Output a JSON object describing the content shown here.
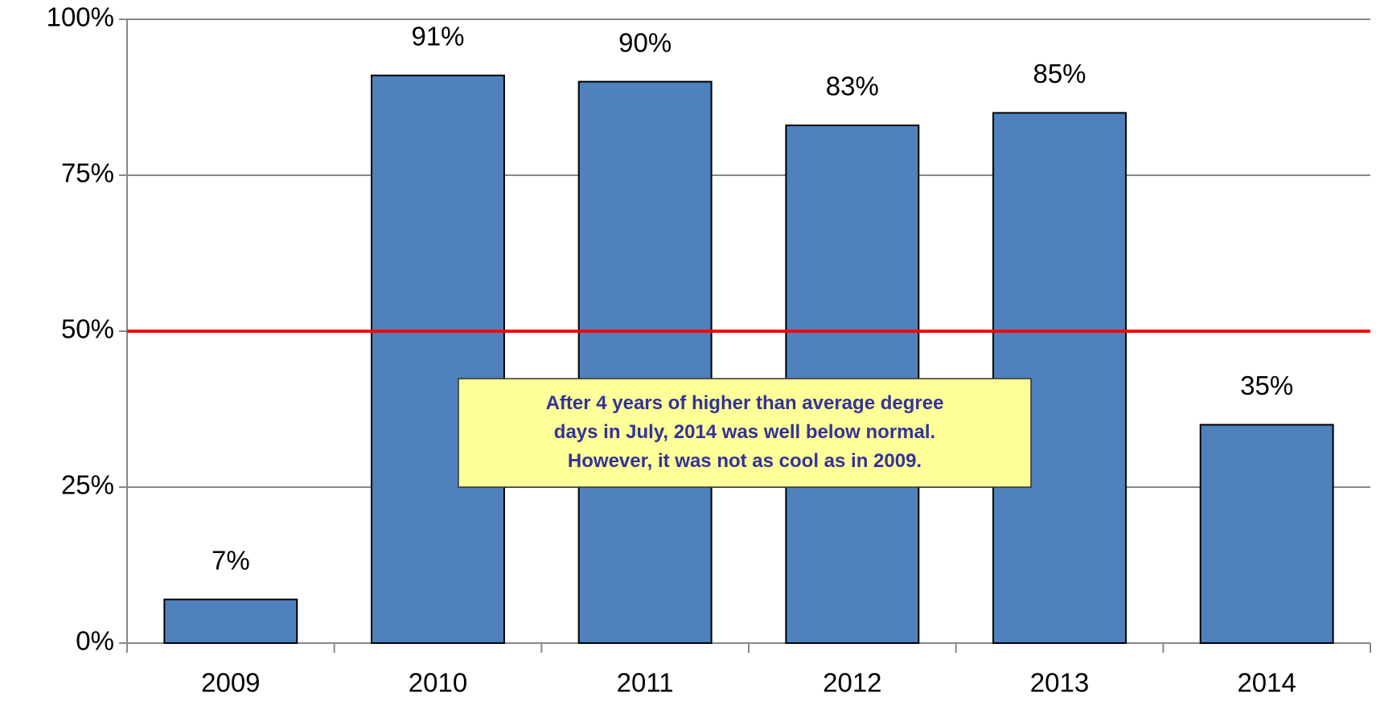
{
  "chart_data": {
    "type": "bar",
    "categories": [
      "2009",
      "2010",
      "2011",
      "2012",
      "2013",
      "2014"
    ],
    "values": [
      7,
      91,
      90,
      83,
      85,
      35
    ],
    "value_labels": [
      "7%",
      "91%",
      "90%",
      "83%",
      "85%",
      "35%"
    ],
    "color": "#4f81bd",
    "ylim": [
      0,
      100
    ],
    "yticks": [
      {
        "value": 0,
        "label": "0%"
      },
      {
        "value": 25,
        "label": "25%"
      },
      {
        "value": 50,
        "label": "50%"
      },
      {
        "value": 75,
        "label": "75%"
      },
      {
        "value": 100,
        "label": "100%"
      }
    ],
    "grid": true,
    "reference_line": {
      "value": 50,
      "color": "#ff0000"
    },
    "annotation": [
      "After 4 years of higher than average degree",
      "days in July, 2014 was well below normal.",
      "However, it was not as cool as in 2009."
    ]
  }
}
